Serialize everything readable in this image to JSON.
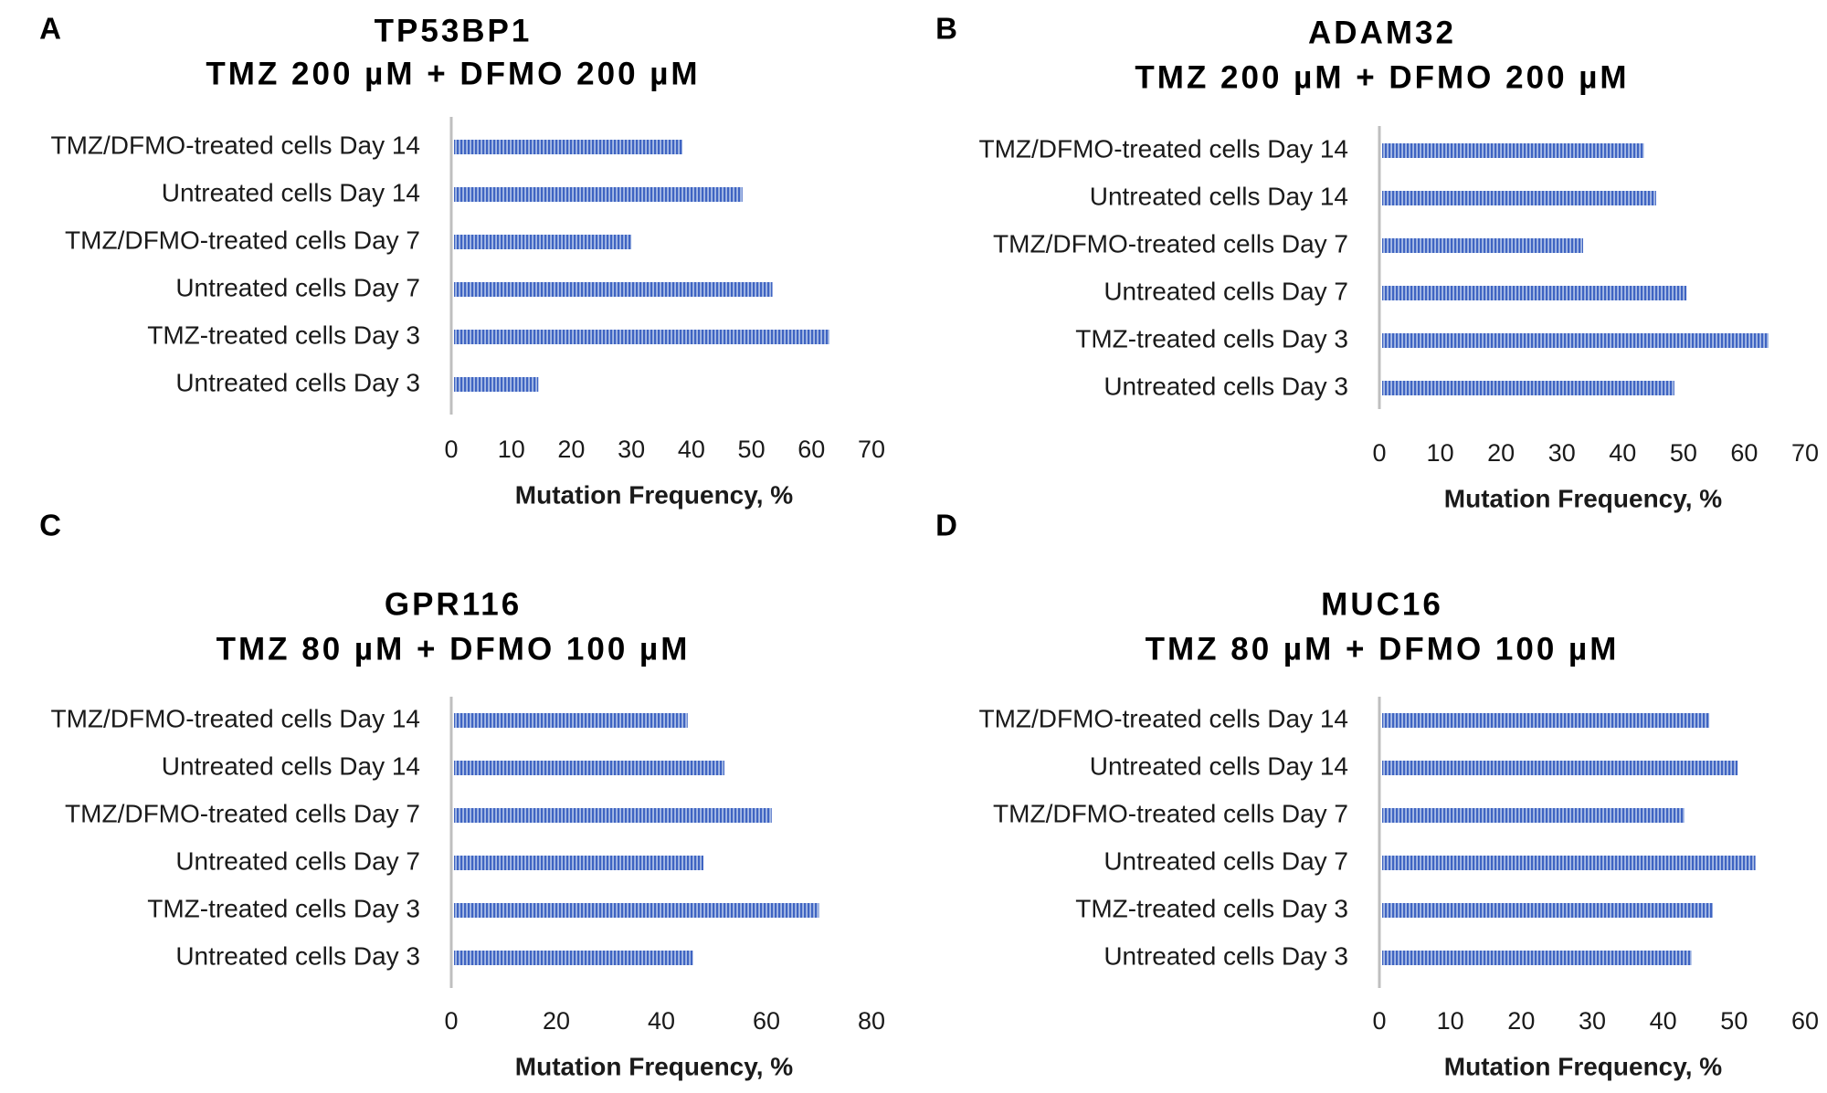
{
  "chart_data": [
    {
      "type": "bar",
      "panel": "A",
      "title": [
        "TP53BP1",
        "TMZ 200 µM + DFMO 200 µM"
      ],
      "categories": [
        "TMZ/DFMO-treated cells Day 14",
        "Untreated cells Day 14",
        "TMZ/DFMO-treated cells Day 7",
        "Untreated cells Day 7",
        "TMZ-treated cells Day 3",
        "Untreated cells Day 3"
      ],
      "values": [
        38.5,
        48.5,
        30,
        53.5,
        63,
        14.5
      ],
      "xlabel": "Mutation Frequency, %",
      "ylabel": "",
      "xlim": [
        0,
        70
      ],
      "ticks": [
        0,
        10,
        20,
        30,
        40,
        50,
        60,
        70
      ],
      "bar_color": "#4472c4",
      "grid": false
    },
    {
      "type": "bar",
      "panel": "B",
      "title": [
        "ADAM32",
        "TMZ 200 µM + DFMO 200 µM"
      ],
      "categories": [
        "TMZ/DFMO-treated cells Day 14",
        "Untreated cells Day 14",
        "TMZ/DFMO-treated cells Day 7",
        "Untreated cells Day 7",
        "TMZ-treated cells Day 3",
        "Untreated cells Day 3"
      ],
      "values": [
        43.5,
        45.5,
        33.5,
        50.5,
        64,
        48.5
      ],
      "xlabel": "Mutation Frequency, %",
      "ylabel": "",
      "xlim": [
        0,
        70
      ],
      "ticks": [
        0,
        10,
        20,
        30,
        40,
        50,
        60,
        70
      ],
      "bar_color": "#4472c4",
      "grid": false
    },
    {
      "type": "bar",
      "panel": "C",
      "title": [
        "GPR116",
        "TMZ 80 µM + DFMO 100 µM"
      ],
      "categories": [
        "TMZ/DFMO-treated cells Day 14",
        "Untreated cells Day 14",
        "TMZ/DFMO-treated cells Day 7",
        "Untreated cells Day 7",
        "TMZ-treated cells Day 3",
        "Untreated cells Day 3"
      ],
      "values": [
        45,
        52,
        61,
        48,
        70,
        46
      ],
      "xlabel": "Mutation Frequency, %",
      "ylabel": "",
      "xlim": [
        0,
        80
      ],
      "ticks": [
        0,
        20,
        40,
        60,
        80
      ],
      "bar_color": "#4472c4",
      "grid": false
    },
    {
      "type": "bar",
      "panel": "D",
      "title": [
        "MUC16",
        "TMZ 80 µM + DFMO 100 µM"
      ],
      "categories": [
        "TMZ/DFMO-treated cells Day 14",
        "Untreated cells Day 14",
        "TMZ/DFMO-treated cells Day 7",
        "Untreated cells Day 7",
        "TMZ-treated cells Day 3",
        "Untreated cells Day 3"
      ],
      "values": [
        46.5,
        50.5,
        43,
        53,
        47,
        44
      ],
      "xlabel": "Mutation Frequency, %",
      "ylabel": "",
      "xlim": [
        0,
        60
      ],
      "ticks": [
        0,
        10,
        20,
        30,
        40,
        50,
        60
      ],
      "bar_color": "#4472c4",
      "grid": false
    }
  ]
}
